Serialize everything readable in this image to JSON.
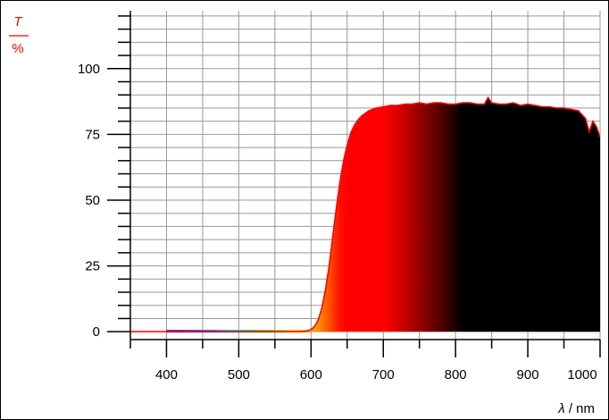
{
  "chart_data": {
    "type": "area",
    "ylabel_symbol": "T",
    "ylabel_unit": "%",
    "xlabel_symbol": "λ",
    "xlabel_unit": " / nm",
    "xlim": [
      350,
      1000
    ],
    "ylim": [
      -3,
      122
    ],
    "x_ticks": [
      400,
      500,
      600,
      700,
      800,
      900,
      1000
    ],
    "x_tick_labels": [
      "400",
      "500",
      "600",
      "700",
      "800",
      "900",
      "1000"
    ],
    "y_ticks": [
      0,
      25,
      50,
      75,
      100
    ],
    "y_tick_labels": [
      "0",
      "25",
      "50",
      "75",
      "100"
    ],
    "grid": true,
    "colors": {
      "curve": "#ff0000",
      "axis_title": "#ff0000",
      "grid": "#999999",
      "fill_dark": "#000000"
    },
    "series": [
      {
        "x": [
          350,
          400,
          450,
          500,
          550,
          580,
          590,
          595,
          600,
          605,
          610,
          615,
          620,
          625,
          630,
          635,
          640,
          645,
          650,
          655,
          660,
          665,
          670,
          680,
          690,
          700,
          710,
          720,
          730,
          740,
          750,
          760,
          770,
          780,
          790,
          800,
          810,
          820,
          830,
          840,
          845,
          850,
          860,
          870,
          880,
          890,
          900,
          910,
          920,
          930,
          940,
          950,
          960,
          970,
          980,
          985,
          990,
          995,
          1000
        ],
        "values": [
          0,
          0,
          0,
          0,
          0,
          0,
          0.1,
          0.3,
          0.8,
          2,
          4.5,
          9,
          16,
          25,
          36,
          47,
          57,
          65,
          71,
          75.5,
          78.5,
          80.5,
          82,
          84,
          85,
          85.5,
          86,
          86,
          86.5,
          86.5,
          87,
          86.5,
          87,
          87,
          86.5,
          86.5,
          87,
          87,
          86.5,
          86.5,
          89,
          87,
          86.5,
          86.5,
          87,
          86,
          86.5,
          86,
          85.5,
          85.5,
          85,
          85,
          84.5,
          84,
          81,
          76,
          80,
          78,
          74
        ]
      }
    ]
  }
}
